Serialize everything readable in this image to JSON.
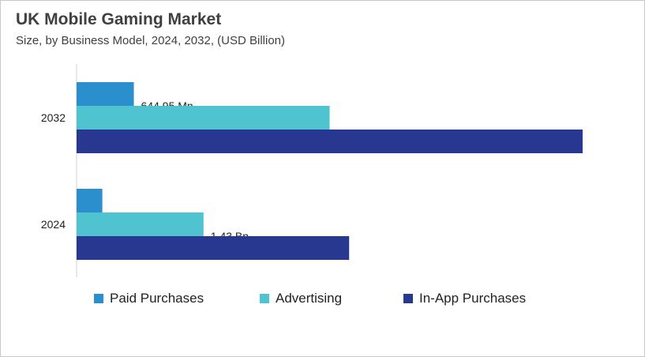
{
  "chart_data": {
    "type": "bar",
    "orientation": "horizontal",
    "title": "UK Mobile Gaming Market",
    "subtitle": "Size, by Business Model, 2024, 2032, (USD Billion)",
    "categories": [
      "2024",
      "2032"
    ],
    "series": [
      {
        "name": "Paid Purchases",
        "color": "#2b8fce",
        "values": [
          0.29,
          0.645
        ],
        "labels": [
          "",
          "644.95 Mn"
        ]
      },
      {
        "name": "Advertising",
        "color": "#4fc3cf",
        "values": [
          1.43,
          2.85
        ],
        "labels": [
          "1.43 Bn",
          ""
        ]
      },
      {
        "name": "In-App Purchases",
        "color": "#283891",
        "values": [
          3.07,
          5.7
        ],
        "labels": [
          "",
          ""
        ]
      }
    ],
    "xlim": [
      0,
      5.7
    ],
    "grid": false,
    "legend_position": "bottom"
  }
}
